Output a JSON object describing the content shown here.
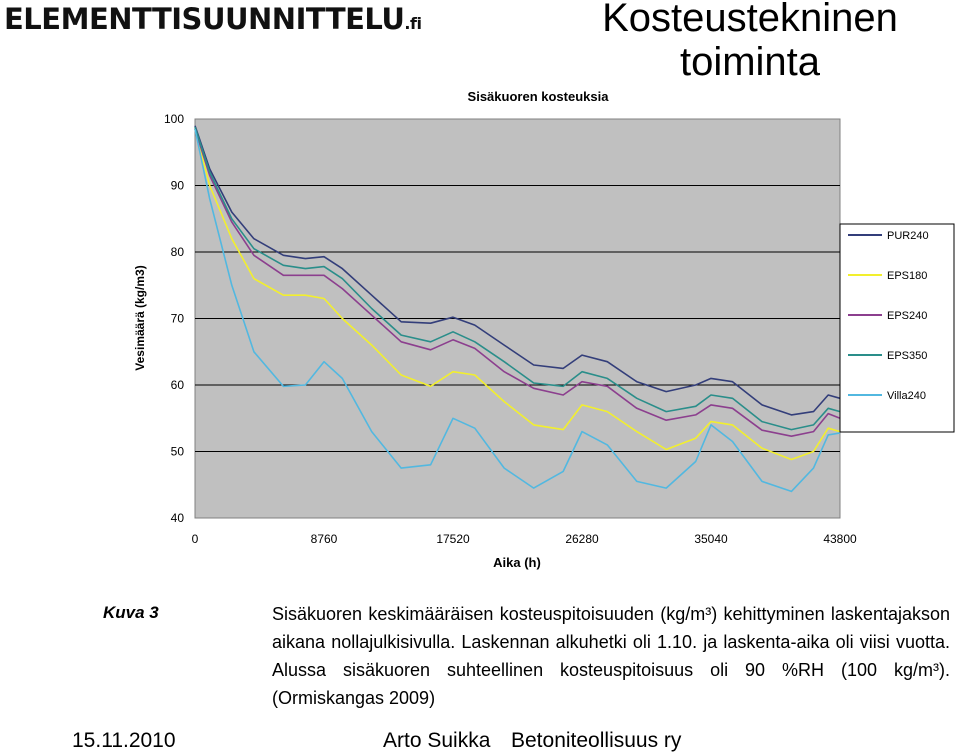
{
  "logo": {
    "main": "ELEMENTTISUUNNITTELU",
    "suffix": ".fi"
  },
  "slide_title": "Kosteustekninen toiminta",
  "chart_data": {
    "type": "line",
    "title": "Sisäkuoren kosteuksia",
    "xlabel": "Aika (h)",
    "ylabel": "Vesimäärä (kg/m3)",
    "xlim": [
      0,
      43800
    ],
    "ylim": [
      40,
      100
    ],
    "xticks": [
      0,
      8760,
      17520,
      26280,
      35040,
      43800
    ],
    "yticks": [
      40,
      50,
      60,
      70,
      80,
      90,
      100
    ],
    "grid": "horizontal",
    "legend": "right",
    "x": [
      0,
      1000,
      2500,
      4000,
      6000,
      7500,
      8760,
      10000,
      12000,
      14000,
      16000,
      17520,
      19000,
      21000,
      23000,
      25000,
      26280,
      28000,
      30000,
      32000,
      34000,
      35040,
      36500,
      38500,
      40500,
      42000,
      43000,
      43800
    ],
    "series": [
      {
        "name": "PUR240",
        "color": "#333e7a",
        "values": [
          99,
          92.5,
          86,
          82,
          79.5,
          79,
          79.3,
          77.5,
          73.5,
          69.5,
          69.3,
          70.2,
          69,
          66,
          63,
          62.5,
          64.5,
          63.5,
          60.5,
          59,
          60,
          61,
          60.5,
          57,
          55.5,
          56,
          58.5,
          58
        ]
      },
      {
        "name": "EPS180",
        "color": "#f2ef2d",
        "values": [
          98.5,
          90,
          82,
          76,
          73.5,
          73.5,
          73,
          70,
          66,
          61.5,
          59.8,
          62,
          61.5,
          57.5,
          54,
          53.3,
          57,
          56,
          53,
          50.3,
          52,
          54.5,
          54,
          50.5,
          48.8,
          50,
          53.5,
          53
        ]
      },
      {
        "name": "EPS240",
        "color": "#8c3f8e",
        "values": [
          98.5,
          91.5,
          84.5,
          79.5,
          76.5,
          76.5,
          76.5,
          74.5,
          70.5,
          66.5,
          65.3,
          66.8,
          65.5,
          62,
          59.5,
          58.5,
          60.5,
          59.8,
          56.5,
          54.7,
          55.5,
          57,
          56.5,
          53.2,
          52.3,
          53,
          55.7,
          55
        ]
      },
      {
        "name": "EPS350",
        "color": "#2a8e8a",
        "values": [
          98.8,
          92,
          85,
          80.5,
          78,
          77.5,
          77.8,
          76,
          71.5,
          67.5,
          66.5,
          68,
          66.5,
          63.5,
          60.3,
          59.8,
          62,
          61,
          58,
          56,
          56.8,
          58.5,
          58,
          54.5,
          53.3,
          54,
          56.5,
          56
        ]
      },
      {
        "name": "Villa240",
        "color": "#52b8e0",
        "values": [
          98.5,
          88,
          75,
          65,
          59.8,
          60,
          63.5,
          61,
          53,
          47.5,
          48,
          55,
          53.5,
          47.5,
          44.5,
          47,
          53,
          51,
          45.5,
          44.5,
          48.5,
          54,
          51.5,
          45.5,
          44,
          47.5,
          52.5,
          52.8
        ]
      }
    ]
  },
  "caption": {
    "label": "Kuva 3",
    "text": "Sisäkuoren keskimääräisen kosteuspitoisuuden (kg/m³) kehittyminen laskentajakson aikana nollajulkisivulla. Laskennan alkuhetki oli 1.10. ja laskenta-aika oli viisi vuotta. Alussa sisäkuoren suhteellinen kosteuspitoisuus oli 90 %RH (100 kg/m³). (Ormiskangas 2009)"
  },
  "footer": {
    "date": "15.11.2010",
    "author": "Arto Suikka",
    "org": "Betoniteollisuus ry"
  }
}
